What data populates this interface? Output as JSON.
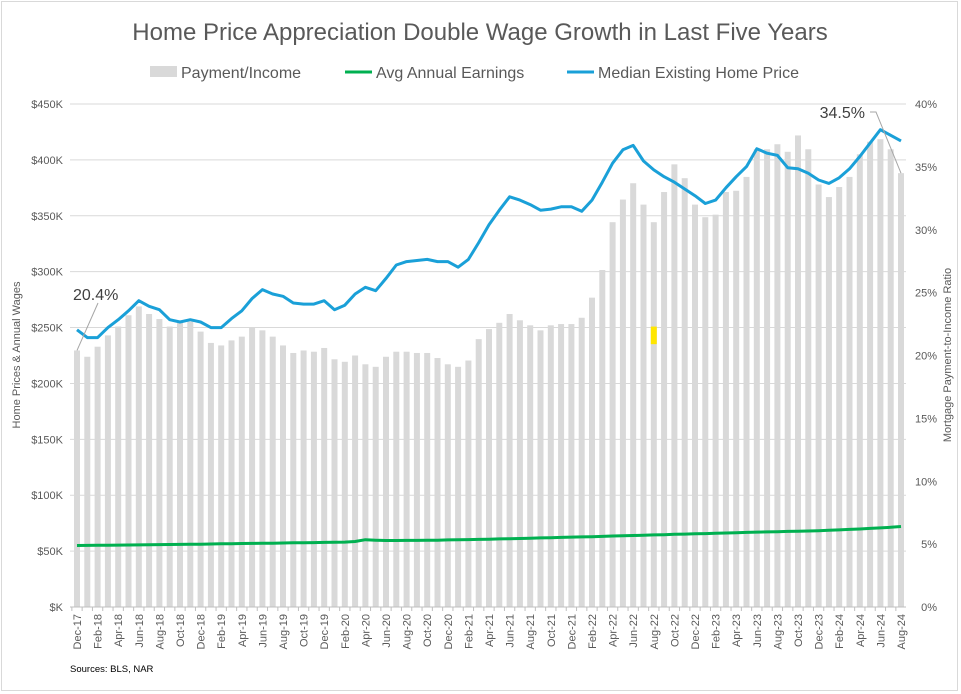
{
  "chart_data": {
    "type": "bar+line",
    "title": "Home Price Appreciation Double Wage Growth in Last Five Years",
    "ylabel_left": "Home Prices & Annual Wages",
    "ylabel_right": "Mortgage Payment-to-Income Ratio",
    "ylim_left": [
      0,
      450000
    ],
    "ylim_right": [
      0,
      40
    ],
    "yticks_left": [
      "$K",
      "$50K",
      "$100K",
      "$150K",
      "$200K",
      "$250K",
      "$300K",
      "$350K",
      "$400K",
      "$450K"
    ],
    "yticks_right": [
      "0%",
      "5%",
      "10%",
      "15%",
      "20%",
      "25%",
      "30%",
      "35%",
      "40%"
    ],
    "grid": true,
    "legend_position": "top",
    "source": "Sources: BLS, NAR",
    "colors": {
      "bars": "#d9d9d9",
      "earnings": "#00b050",
      "price": "#1aa0d8",
      "highlight": "#ffe600"
    },
    "categories": [
      "Dec-17",
      "Jan-18",
      "Feb-18",
      "Mar-18",
      "Apr-18",
      "May-18",
      "Jun-18",
      "Jul-18",
      "Aug-18",
      "Sep-18",
      "Oct-18",
      "Nov-18",
      "Dec-18",
      "Jan-19",
      "Feb-19",
      "Mar-19",
      "Apr-19",
      "May-19",
      "Jun-19",
      "Jul-19",
      "Aug-19",
      "Sep-19",
      "Oct-19",
      "Nov-19",
      "Dec-19",
      "Jan-20",
      "Feb-20",
      "Mar-20",
      "Apr-20",
      "May-20",
      "Jun-20",
      "Jul-20",
      "Aug-20",
      "Sep-20",
      "Oct-20",
      "Nov-20",
      "Dec-20",
      "Jan-21",
      "Feb-21",
      "Mar-21",
      "Apr-21",
      "May-21",
      "Jun-21",
      "Jul-21",
      "Aug-21",
      "Sep-21",
      "Oct-21",
      "Nov-21",
      "Dec-21",
      "Jan-22",
      "Feb-22",
      "Mar-22",
      "Apr-22",
      "May-22",
      "Jun-22",
      "Jul-22",
      "Aug-22",
      "Sep-22",
      "Oct-22",
      "Nov-22",
      "Dec-22",
      "Jan-23",
      "Feb-23",
      "Mar-23",
      "Apr-23",
      "May-23",
      "Jun-23",
      "Jul-23",
      "Aug-23",
      "Sep-23",
      "Oct-23",
      "Nov-23",
      "Dec-23",
      "Jan-24",
      "Feb-24",
      "Mar-24",
      "Apr-24",
      "May-24",
      "Jun-24",
      "Jul-24",
      "Aug-24"
    ],
    "series": [
      {
        "name": "Payment/Income",
        "type": "bar",
        "axis": "right",
        "unit": "%",
        "values": [
          20.4,
          19.9,
          20.7,
          21.6,
          22.3,
          23.2,
          23.9,
          23.3,
          22.9,
          22.3,
          22.6,
          22.7,
          21.9,
          21.0,
          20.8,
          21.2,
          21.5,
          22.2,
          22.0,
          21.5,
          20.8,
          20.2,
          20.4,
          20.3,
          20.6,
          19.7,
          19.5,
          20.0,
          19.3,
          19.1,
          19.9,
          20.3,
          20.3,
          20.2,
          20.2,
          19.8,
          19.3,
          19.1,
          19.6,
          21.3,
          22.1,
          22.6,
          23.3,
          22.8,
          22.4,
          22.0,
          22.4,
          22.5,
          22.5,
          23.0,
          24.6,
          26.8,
          30.6,
          32.4,
          33.7,
          32.0,
          30.6,
          33.0,
          35.2,
          34.1,
          32.0,
          31.0,
          31.2,
          33.0,
          33.1,
          34.2,
          36.4,
          36.4,
          36.8,
          36.2,
          37.5,
          36.4,
          33.6,
          32.6,
          33.4,
          34.2,
          36.0,
          37.0,
          37.2,
          36.4,
          34.5
        ]
      },
      {
        "name": "Avg Annual Earnings",
        "type": "line",
        "axis": "left",
        "unit": "$K",
        "values": [
          55.0,
          55.1,
          55.2,
          55.3,
          55.4,
          55.5,
          55.6,
          55.7,
          55.8,
          55.9,
          56.0,
          56.1,
          56.2,
          56.4,
          56.5,
          56.6,
          56.8,
          56.9,
          57.0,
          57.1,
          57.3,
          57.4,
          57.5,
          57.6,
          57.8,
          58.0,
          58.1,
          58.6,
          60.2,
          59.8,
          59.5,
          59.5,
          59.6,
          59.6,
          59.7,
          59.8,
          60.0,
          60.2,
          60.3,
          60.5,
          60.7,
          60.9,
          61.1,
          61.3,
          61.5,
          61.8,
          62.0,
          62.3,
          62.5,
          62.7,
          62.9,
          63.2,
          63.5,
          63.7,
          64.0,
          64.2,
          64.5,
          64.7,
          65.0,
          65.2,
          65.5,
          65.7,
          66.0,
          66.2,
          66.5,
          66.7,
          67.0,
          67.2,
          67.4,
          67.6,
          67.8,
          68.0,
          68.3,
          68.6,
          69.0,
          69.4,
          69.8,
          70.3,
          70.8,
          71.3,
          72.0
        ]
      },
      {
        "name": "Median Existing Home Price",
        "type": "line",
        "axis": "left",
        "unit": "$K",
        "values": [
          248,
          241,
          241,
          250,
          257,
          265,
          274,
          269,
          266,
          257,
          255,
          257,
          255,
          250,
          250,
          258,
          265,
          276,
          284,
          280,
          278,
          272,
          271,
          271,
          274,
          266,
          270,
          280,
          286,
          283,
          294,
          306,
          309,
          310,
          311,
          309,
          309,
          304,
          311,
          326,
          342,
          355,
          367,
          364,
          360,
          355,
          356,
          358,
          358,
          354,
          364,
          380,
          397,
          409,
          413,
          399,
          391,
          385,
          380,
          374,
          368,
          361,
          364,
          375,
          385,
          394,
          410,
          406,
          404,
          393,
          392,
          388,
          382,
          379,
          384,
          392,
          403,
          415,
          427,
          422,
          417
        ]
      }
    ],
    "annotations": [
      {
        "text": "20.4%",
        "category": "Dec-17"
      },
      {
        "text": "34.5%",
        "category": "Aug-24"
      }
    ],
    "highlight_category": "Aug-22"
  }
}
